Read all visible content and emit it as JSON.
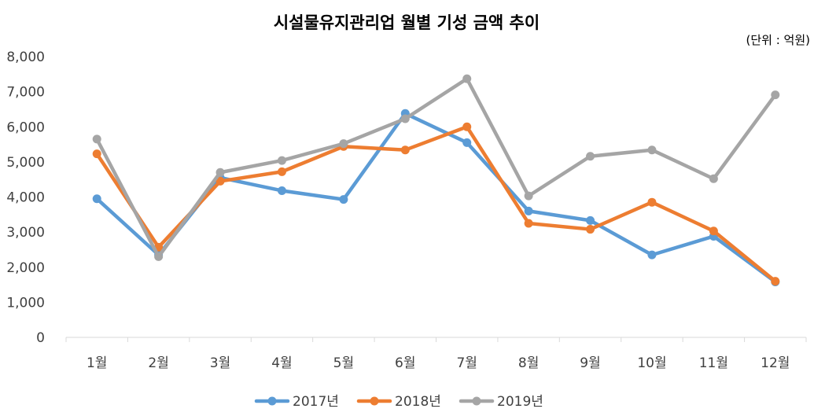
{
  "chart_data": {
    "type": "line",
    "title": "시설물유지관리업 월별 기성 금액 추이",
    "unit_note": "(단위 : 억원)",
    "categories": [
      "1월",
      "2월",
      "3월",
      "4월",
      "5월",
      "6월",
      "7월",
      "8월",
      "9월",
      "10월",
      "11월",
      "12월"
    ],
    "yticks": [
      "0",
      "1,000",
      "2,000",
      "3,000",
      "4,000",
      "5,000",
      "6,000",
      "7,000",
      "8,000"
    ],
    "ylim": [
      0,
      8000
    ],
    "grid": false,
    "legend_position": "bottom",
    "series": [
      {
        "name": "2017년",
        "color": "#5B9BD5",
        "values": [
          3950,
          2350,
          4550,
          4180,
          3930,
          6380,
          5550,
          3600,
          3330,
          2350,
          2880,
          1580
        ]
      },
      {
        "name": "2018년",
        "color": "#ED7D31",
        "values": [
          5230,
          2570,
          4450,
          4720,
          5440,
          5340,
          6000,
          3250,
          3080,
          3850,
          3030,
          1600
        ]
      },
      {
        "name": "2019년",
        "color": "#A5A5A5",
        "values": [
          5650,
          2300,
          4700,
          5040,
          5520,
          6230,
          7370,
          4030,
          5160,
          5340,
          4520,
          6910
        ]
      }
    ]
  }
}
